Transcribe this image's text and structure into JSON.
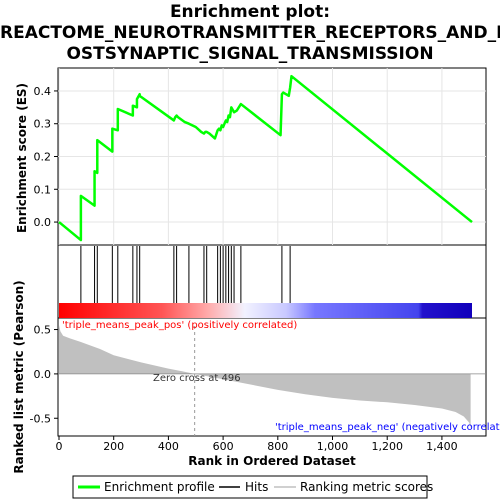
{
  "title_lines": [
    "Enrichment plot:",
    "REACTOME_NEUROTRANSMITTER_RECEPTORS_AND_P",
    "OSTSYNAPTIC_SIGNAL_TRANSMISSION"
  ],
  "colors": {
    "enrichment": "#00ff00",
    "hits": "#000000",
    "metric_fill": "#c0c0c0",
    "pos_text": "#ff0000",
    "neg_text": "#0000ff",
    "axis": "#000000"
  },
  "chart_data": [
    {
      "type": "line",
      "name": "enrichment-plot",
      "ylabel": "Enrichment score (ES)",
      "xlim": [
        0,
        1510
      ],
      "ylim": [
        -0.07,
        0.47
      ],
      "yticks": [
        0.0,
        0.1,
        0.2,
        0.3,
        0.4
      ],
      "ytick_labels": [
        "0.0",
        "0.1",
        "0.2",
        "0.3",
        "0.4"
      ],
      "x": [
        0,
        80,
        80,
        130,
        130,
        140,
        140,
        195,
        195,
        215,
        215,
        270,
        270,
        285,
        285,
        295,
        295,
        420,
        425,
        430,
        435,
        460,
        475,
        500,
        520,
        530,
        535,
        540,
        550,
        570,
        580,
        585,
        590,
        595,
        600,
        610,
        615,
        620,
        625,
        630,
        640,
        650,
        665,
        810,
        815,
        820,
        840,
        845,
        850,
        1510
      ],
      "y": [
        0.0,
        -0.055,
        0.08,
        0.05,
        0.155,
        0.15,
        0.25,
        0.215,
        0.285,
        0.28,
        0.345,
        0.325,
        0.355,
        0.35,
        0.375,
        0.39,
        0.385,
        0.31,
        0.32,
        0.325,
        0.32,
        0.305,
        0.3,
        0.29,
        0.275,
        0.27,
        0.275,
        0.275,
        0.27,
        0.255,
        0.28,
        0.285,
        0.28,
        0.295,
        0.29,
        0.31,
        0.305,
        0.325,
        0.32,
        0.35,
        0.335,
        0.34,
        0.36,
        0.265,
        0.39,
        0.395,
        0.385,
        0.41,
        0.445,
        0.0
      ]
    },
    {
      "type": "hits",
      "name": "hits",
      "x": [
        80,
        130,
        140,
        195,
        215,
        270,
        285,
        295,
        420,
        430,
        475,
        530,
        540,
        580,
        590,
        600,
        610,
        620,
        630,
        640,
        665,
        815,
        845
      ]
    },
    {
      "type": "area",
      "name": "ranked-list-metric",
      "xlabel": "Rank in Ordered Dataset",
      "ylabel": "Ranked list metric (Pearson)",
      "xlim": [
        0,
        1510
      ],
      "ylim": [
        -0.7,
        0.63
      ],
      "xticks": [
        0,
        200,
        400,
        600,
        800,
        1000,
        1200,
        1400
      ],
      "xtick_labels": [
        "0",
        "200",
        "400",
        "600",
        "800",
        "1,000",
        "1,200",
        "1,400"
      ],
      "yticks": [
        -0.5,
        0.0,
        0.5
      ],
      "ytick_labels": [
        "-0.5",
        "0.0",
        "0.5"
      ],
      "x": [
        0,
        5,
        15,
        40,
        80,
        150,
        200,
        300,
        400,
        450,
        496,
        600,
        700,
        800,
        900,
        1000,
        1100,
        1200,
        1300,
        1400,
        1450,
        1480,
        1500,
        1505
      ],
      "y": [
        0.55,
        0.48,
        0.43,
        0.4,
        0.36,
        0.28,
        0.21,
        0.13,
        0.06,
        0.03,
        0.0,
        -0.06,
        -0.12,
        -0.18,
        -0.23,
        -0.27,
        -0.3,
        -0.32,
        -0.35,
        -0.39,
        -0.43,
        -0.48,
        -0.55,
        -0.62
      ],
      "zero_cross_label": "Zero cross at 496",
      "pos_label": "'triple_means_peak_pos' (positively correlated)",
      "neg_label": "'triple_means_peak_neg' (negatively correlated)"
    }
  ],
  "legend": {
    "items": [
      {
        "label": "Enrichment profile"
      },
      {
        "label": "Hits"
      },
      {
        "label": "Ranking metric scores"
      }
    ]
  }
}
